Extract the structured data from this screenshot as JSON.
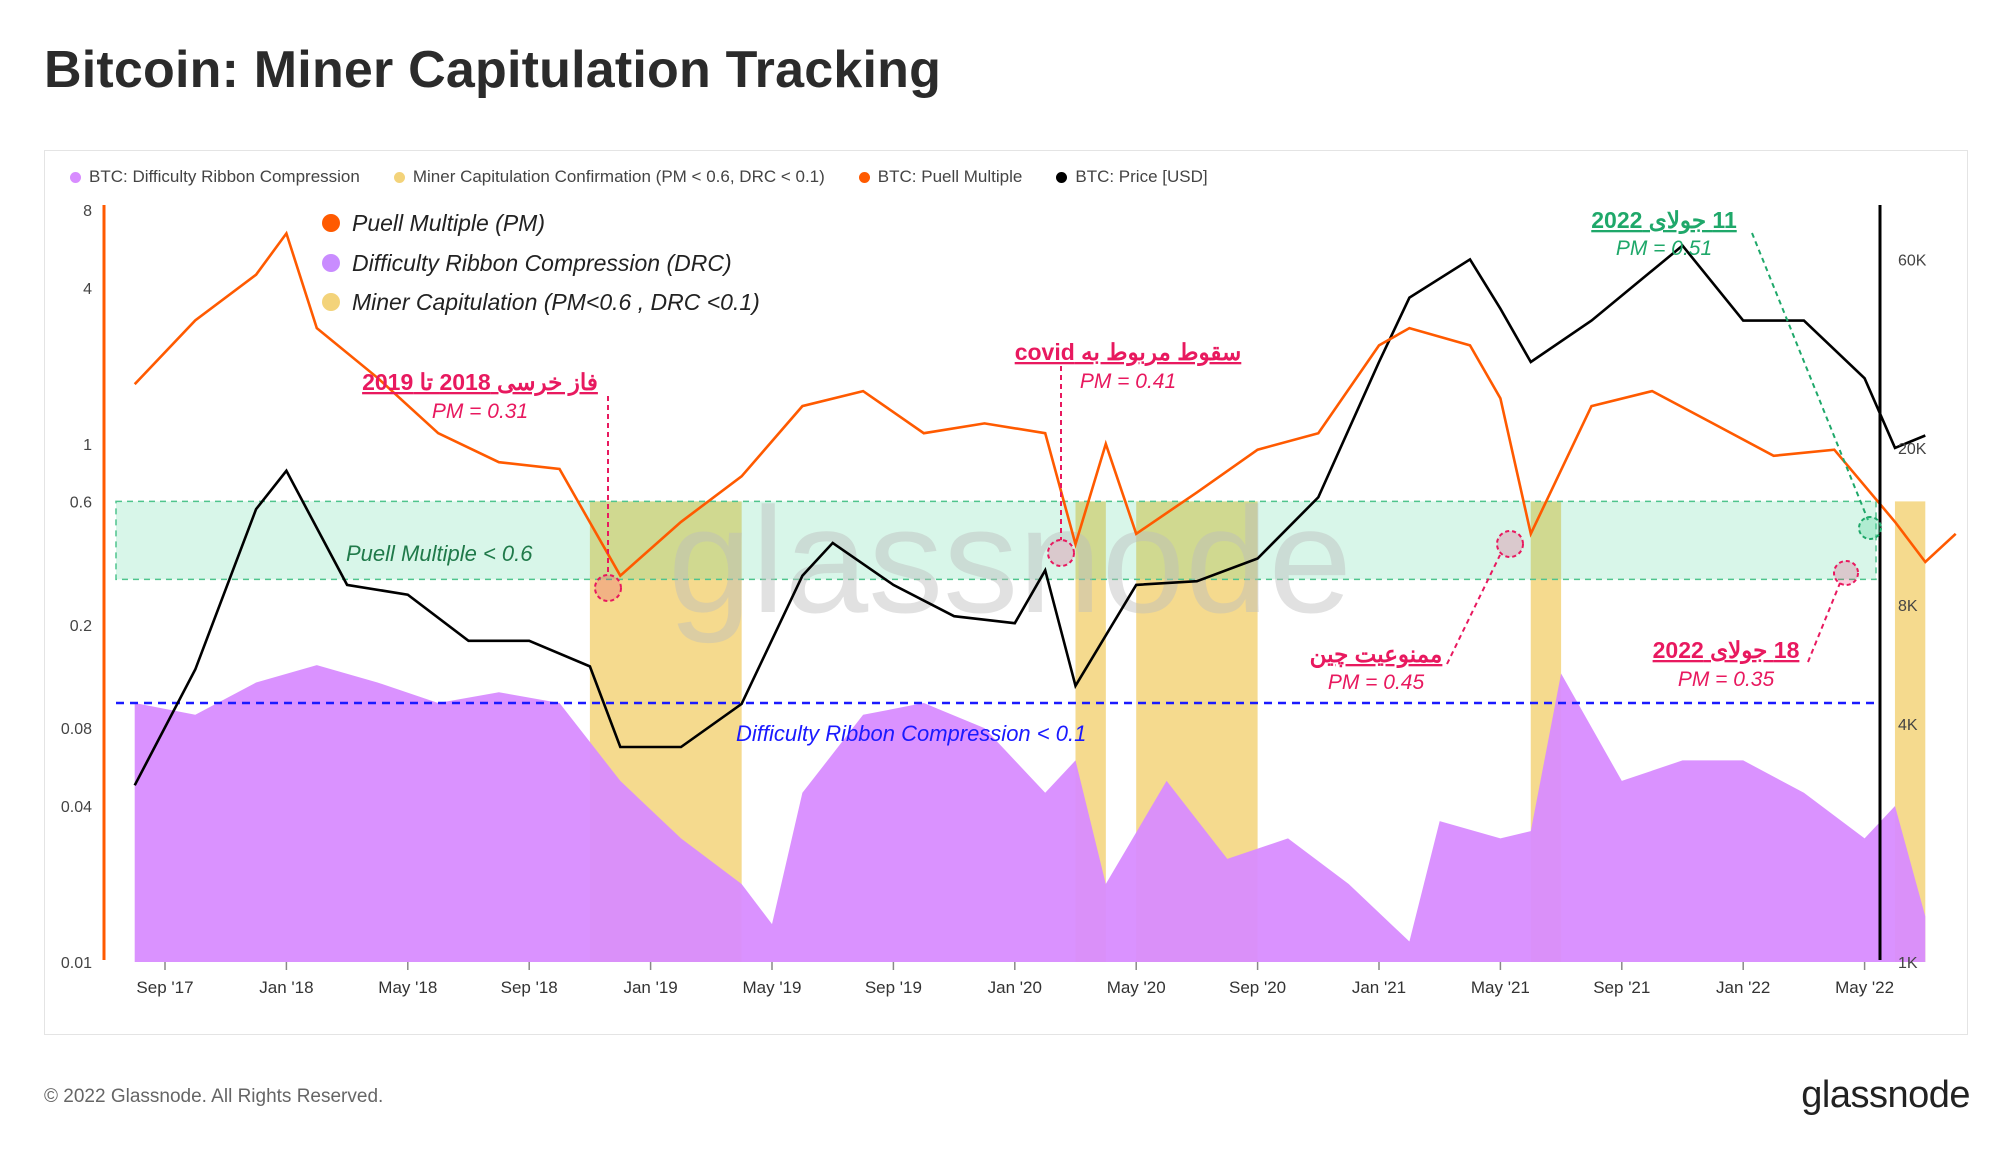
{
  "title": "Bitcoin: Miner Capitulation Tracking",
  "legend": [
    {
      "label": "BTC: Difficulty Ribbon Compression",
      "color": "#d88cff"
    },
    {
      "label": "Miner Capitulation Confirmation (PM < 0.6, DRC < 0.1)",
      "color": "#f3d37a"
    },
    {
      "label": "BTC: Puell Multiple",
      "color": "#ff5a00"
    },
    {
      "label": "BTC: Price [USD]",
      "color": "#000000"
    }
  ],
  "inner_legend": [
    {
      "label": "Puell Multiple (PM)",
      "color": "#ff5a00"
    },
    {
      "label": "Difficulty Ribbon Compression (DRC)",
      "color": "#c98cff"
    },
    {
      "label": "Miner Capitulation (PM<0.6 , DRC <0.1)",
      "color": "#f3d37a"
    }
  ],
  "annotations": {
    "puell_band": "Puell Multiple < 0.6",
    "drc_line": "Difficulty Ribbon Compression < 0.1",
    "bear_title": "فاز خرسی 2018 تا 2019",
    "bear_pm": "PM = 0.31",
    "covid_title": "سقوط مربوط به covid",
    "covid_pm": "PM = 0.41",
    "china_title": "ممنوعیت چین",
    "china_pm": "PM = 0.45",
    "jul11_title": "11 جولای 2022",
    "jul11_pm": "PM = 0.51",
    "jul18_title": "18 جولای 2022",
    "jul18_pm": "PM = 0.35"
  },
  "watermark": "glassnode",
  "copyright": "© 2022 Glassnode. All Rights Reserved.",
  "brand": "glassnode",
  "chart_data": {
    "type": "line",
    "x_ticks": [
      "Sep '17",
      "Jan '18",
      "May '18",
      "Sep '18",
      "Jan '19",
      "May '19",
      "Sep '19",
      "Jan '20",
      "May '20",
      "Sep '20",
      "Jan '21",
      "May '21",
      "Sep '21",
      "Jan '22",
      "May '22"
    ],
    "y_left": {
      "scale": "log",
      "ticks": [
        "8",
        "4",
        "1",
        "0.6",
        "0.2",
        "0.08",
        "0.04",
        "0.01"
      ],
      "range": [
        0.01,
        8
      ]
    },
    "y_right": {
      "scale": "log",
      "ticks": [
        "60K",
        "20K",
        "8K",
        "4K",
        "1K"
      ],
      "range": [
        1000,
        80000
      ]
    },
    "thresholds": {
      "puell_band": [
        0.3,
        0.6
      ],
      "drc": 0.1
    },
    "series": [
      {
        "name": "BTC: Puell Multiple",
        "axis": "left",
        "color": "#ff5a00",
        "points": [
          [
            "2017-08",
            1.7
          ],
          [
            "2017-10",
            3.0
          ],
          [
            "2017-12",
            4.5
          ],
          [
            "2018-01",
            6.5
          ],
          [
            "2018-02",
            2.8
          ],
          [
            "2018-04",
            1.8
          ],
          [
            "2018-06",
            1.1
          ],
          [
            "2018-08",
            0.85
          ],
          [
            "2018-10",
            0.8
          ],
          [
            "2018-12",
            0.31
          ],
          [
            "2019-02",
            0.5
          ],
          [
            "2019-04",
            0.75
          ],
          [
            "2019-06",
            1.4
          ],
          [
            "2019-08",
            1.6
          ],
          [
            "2019-10",
            1.1
          ],
          [
            "2019-12",
            1.2
          ],
          [
            "2020-02",
            1.1
          ],
          [
            "2020-03",
            0.41
          ],
          [
            "2020-04",
            1.0
          ],
          [
            "2020-05",
            0.45
          ],
          [
            "2020-07",
            0.65
          ],
          [
            "2020-09",
            0.95
          ],
          [
            "2020-11",
            1.1
          ],
          [
            "2021-01",
            2.4
          ],
          [
            "2021-02",
            2.8
          ],
          [
            "2021-04",
            2.4
          ],
          [
            "2021-05",
            1.5
          ],
          [
            "2021-06",
            0.45
          ],
          [
            "2021-08",
            1.4
          ],
          [
            "2021-10",
            1.6
          ],
          [
            "2021-12",
            1.2
          ],
          [
            "2022-02",
            0.9
          ],
          [
            "2022-04",
            0.95
          ],
          [
            "2022-06",
            0.5
          ],
          [
            "2022-07",
            0.35
          ],
          [
            "2022-08",
            0.45
          ]
        ]
      },
      {
        "name": "BTC: Price [USD]",
        "axis": "right",
        "color": "#000000",
        "points": [
          [
            "2017-08",
            2800
          ],
          [
            "2017-10",
            5500
          ],
          [
            "2017-12",
            14000
          ],
          [
            "2018-01",
            17500
          ],
          [
            "2018-03",
            9000
          ],
          [
            "2018-05",
            8500
          ],
          [
            "2018-07",
            6500
          ],
          [
            "2018-09",
            6500
          ],
          [
            "2018-11",
            5600
          ],
          [
            "2018-12",
            3500
          ],
          [
            "2019-02",
            3500
          ],
          [
            "2019-04",
            4500
          ],
          [
            "2019-06",
            9500
          ],
          [
            "2019-07",
            11500
          ],
          [
            "2019-09",
            9000
          ],
          [
            "2019-11",
            7500
          ],
          [
            "2020-01",
            7200
          ],
          [
            "2020-02",
            9800
          ],
          [
            "2020-03",
            5000
          ],
          [
            "2020-05",
            9000
          ],
          [
            "2020-07",
            9200
          ],
          [
            "2020-09",
            10500
          ],
          [
            "2020-11",
            15000
          ],
          [
            "2021-01",
            33000
          ],
          [
            "2021-02",
            48000
          ],
          [
            "2021-04",
            60000
          ],
          [
            "2021-05",
            45000
          ],
          [
            "2021-06",
            33000
          ],
          [
            "2021-08",
            42000
          ],
          [
            "2021-11",
            65000
          ],
          [
            "2022-01",
            42000
          ],
          [
            "2022-03",
            42000
          ],
          [
            "2022-05",
            30000
          ],
          [
            "2022-06",
            20000
          ],
          [
            "2022-07",
            21500
          ]
        ]
      },
      {
        "name": "BTC: Difficulty Ribbon Compression",
        "axis": "left",
        "color": "#d88cff",
        "style": "area",
        "points": [
          [
            "2017-08",
            0.1
          ],
          [
            "2017-10",
            0.09
          ],
          [
            "2017-12",
            0.12
          ],
          [
            "2018-02",
            0.14
          ],
          [
            "2018-04",
            0.12
          ],
          [
            "2018-06",
            0.1
          ],
          [
            "2018-08",
            0.11
          ],
          [
            "2018-10",
            0.1
          ],
          [
            "2018-12",
            0.05
          ],
          [
            "2019-02",
            0.03
          ],
          [
            "2019-04",
            0.02
          ],
          [
            "2019-05",
            0.014
          ],
          [
            "2019-06",
            0.045
          ],
          [
            "2019-08",
            0.09
          ],
          [
            "2019-10",
            0.1
          ],
          [
            "2019-12",
            0.08
          ],
          [
            "2020-02",
            0.045
          ],
          [
            "2020-03",
            0.06
          ],
          [
            "2020-04",
            0.02
          ],
          [
            "2020-06",
            0.05
          ],
          [
            "2020-08",
            0.025
          ],
          [
            "2020-10",
            0.03
          ],
          [
            "2020-12",
            0.02
          ],
          [
            "2021-02",
            0.012
          ],
          [
            "2021-03",
            0.035
          ],
          [
            "2021-05",
            0.03
          ],
          [
            "2021-06",
            0.032
          ],
          [
            "2021-07",
            0.13
          ],
          [
            "2021-09",
            0.05
          ],
          [
            "2021-11",
            0.06
          ],
          [
            "2022-01",
            0.06
          ],
          [
            "2022-03",
            0.045
          ],
          [
            "2022-05",
            0.03
          ],
          [
            "2022-06",
            0.04
          ],
          [
            "2022-07",
            0.015
          ]
        ]
      }
    ],
    "capitulation_periods": [
      [
        "2018-11",
        "2019-04"
      ],
      [
        "2020-03",
        "2020-04"
      ],
      [
        "2020-05",
        "2020-09"
      ],
      [
        "2021-06",
        "2021-07"
      ],
      [
        "2022-06",
        "2022-07"
      ]
    ]
  }
}
